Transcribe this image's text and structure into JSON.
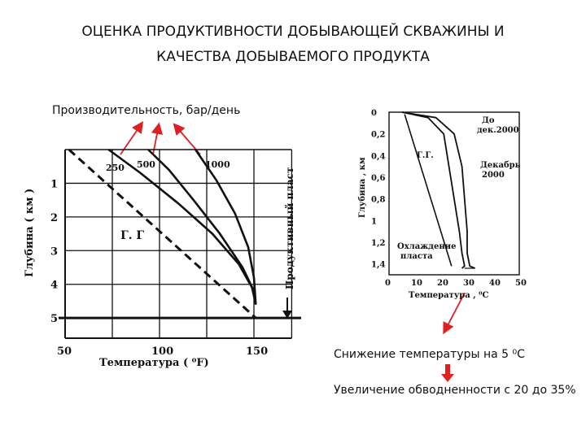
{
  "slide": {
    "title_line1": "ОЦЕНКА ПРОДУКТИВНОСТИ ДОБЫВАЮЩЕЙ СКВАЖИНЫ И",
    "title_line2": "КАЧЕСТВА ДОБЫВАЕМОГО ПРОДУКТА",
    "productivity_label": "Производительность, бар/день",
    "note_temperature": "Снижение температуры на 5 ⁰С",
    "note_watercut": "Увеличение обводненности с 20 до 35%",
    "accent_color": "#e02020"
  },
  "chart_data": [
    {
      "type": "line",
      "xlabel": "Температура  ( ⁰F)",
      "ylabel": "Глубина  ( км )",
      "right_label": "Продуктивный пласт",
      "geotherm_label": "Г. Г",
      "x_ticks": [
        "50",
        "100",
        "150"
      ],
      "y_ticks": [
        "1",
        "2",
        "3",
        "4",
        "5"
      ],
      "xlim": [
        50,
        175
      ],
      "ylim": [
        0,
        5.6
      ],
      "grid": true,
      "series": [
        {
          "name": "250",
          "x": [
            73,
            90,
            110,
            128,
            142,
            149,
            151
          ],
          "y": [
            0,
            0.7,
            1.6,
            2.5,
            3.4,
            4.1,
            4.6
          ]
        },
        {
          "name": "500",
          "x": [
            94,
            105,
            118,
            132,
            144,
            150,
            151
          ],
          "y": [
            0,
            0.6,
            1.5,
            2.5,
            3.5,
            4.2,
            4.6
          ]
        },
        {
          "name": "1000",
          "x": [
            119,
            130,
            140,
            147,
            150,
            151
          ],
          "y": [
            0,
            0.9,
            1.9,
            2.9,
            3.8,
            4.6
          ]
        }
      ],
      "geotherm": {
        "x": [
          52,
          151
        ],
        "y": [
          0,
          5
        ]
      },
      "reservoir_depth": 5
    },
    {
      "type": "line",
      "xlabel": "Температура ,  ⁰С",
      "ylabel": "Глубина , км",
      "x_ticks": [
        "0",
        "10",
        "20",
        "30",
        "40",
        "50"
      ],
      "y_ticks": [
        "0",
        "0,2",
        "0,4",
        "0,6",
        "0,8",
        "1",
        "1,2",
        "1,4"
      ],
      "xlim": [
        0,
        50
      ],
      "ylim": [
        0,
        1.5
      ],
      "annotations": [
        "До дек.2000",
        "Декабрь 2000",
        "Г.Г.",
        "Охлаждение пласта"
      ],
      "series": [
        {
          "name": "До дек.2000",
          "x": [
            5,
            18,
            25,
            28,
            29,
            30,
            30,
            31,
            33
          ],
          "y": [
            0,
            0.05,
            0.2,
            0.5,
            0.8,
            1.1,
            1.3,
            1.42,
            1.44
          ]
        },
        {
          "name": "Декабрь 2000",
          "x": [
            5,
            15,
            21,
            23,
            25,
            27,
            28,
            29,
            28
          ],
          "y": [
            0,
            0.05,
            0.2,
            0.5,
            0.8,
            1.1,
            1.3,
            1.42,
            1.44
          ]
        }
      ],
      "geotherm": {
        "x": [
          6,
          24
        ],
        "y": [
          0.02,
          1.42
        ]
      }
    }
  ]
}
